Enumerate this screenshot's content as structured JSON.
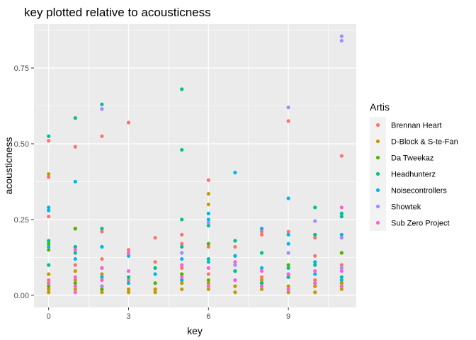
{
  "chart_data": {
    "type": "scatter",
    "title": "key plotted relative to acousticness",
    "xlabel": "key",
    "ylabel": "acousticness",
    "xlim": [
      -0.55,
      11.55
    ],
    "ylim": [
      -0.04,
      0.895
    ],
    "x_ticks": [
      0,
      3,
      6,
      9
    ],
    "y_ticks": [
      0.0,
      0.25,
      0.5,
      0.75
    ],
    "x_tick_labels": [
      "0",
      "3",
      "6",
      "9"
    ],
    "y_tick_labels": [
      "0.00",
      "0.25",
      "0.50",
      "0.75"
    ],
    "grid": true,
    "legend": {
      "title": "Artis",
      "position": "right"
    },
    "series": [
      {
        "name": "Brennan Heart",
        "color": "#F8766D",
        "points": [
          [
            0,
            0.51
          ],
          [
            0,
            0.39
          ],
          [
            0,
            0.26
          ],
          [
            0,
            0.05
          ],
          [
            1,
            0.49
          ],
          [
            1,
            0.22
          ],
          [
            1,
            0.1
          ],
          [
            2,
            0.525
          ],
          [
            2,
            0.21
          ],
          [
            2,
            0.12
          ],
          [
            3,
            0.57
          ],
          [
            3,
            0.15
          ],
          [
            3,
            0.05
          ],
          [
            4,
            0.19
          ],
          [
            4,
            0.11
          ],
          [
            4,
            0.02
          ],
          [
            5,
            0.2
          ],
          [
            5,
            0.17
          ],
          [
            5,
            0.09
          ],
          [
            6,
            0.38
          ],
          [
            6,
            0.16
          ],
          [
            6,
            0.07
          ],
          [
            7,
            0.16
          ],
          [
            7,
            0.13
          ],
          [
            7,
            0.05
          ],
          [
            8,
            0.21
          ],
          [
            8,
            0.2
          ],
          [
            8,
            0.06
          ],
          [
            9,
            0.575
          ],
          [
            9,
            0.21
          ],
          [
            9,
            0.07
          ],
          [
            10,
            0.19
          ],
          [
            10,
            0.13
          ],
          [
            10,
            0.05
          ],
          [
            11,
            0.46
          ],
          [
            11,
            0.1
          ],
          [
            11,
            0.04
          ]
        ]
      },
      {
        "name": "D-Block & S-te-Fan",
        "color": "#C49A00",
        "points": [
          [
            0,
            0.4
          ],
          [
            0,
            0.07
          ],
          [
            0,
            0.04
          ],
          [
            0,
            0.02
          ],
          [
            0,
            0.01
          ],
          [
            1,
            0.22
          ],
          [
            1,
            0.08
          ],
          [
            1,
            0.05
          ],
          [
            1,
            0.02
          ],
          [
            2,
            0.07
          ],
          [
            2,
            0.03
          ],
          [
            2,
            0.01
          ],
          [
            3,
            0.02
          ],
          [
            3,
            0.01
          ],
          [
            4,
            0.02
          ],
          [
            4,
            0.01
          ],
          [
            5,
            0.07
          ],
          [
            5,
            0.04
          ],
          [
            5,
            0.02
          ],
          [
            6,
            0.335
          ],
          [
            6,
            0.3
          ],
          [
            6,
            0.04
          ],
          [
            6,
            0.02
          ],
          [
            7,
            0.03
          ],
          [
            7,
            0.01
          ],
          [
            8,
            0.05
          ],
          [
            8,
            0.02
          ],
          [
            9,
            0.06
          ],
          [
            9,
            0.03
          ],
          [
            9,
            0.01
          ],
          [
            10,
            0.03
          ],
          [
            10,
            0.01
          ],
          [
            11,
            0.04
          ],
          [
            11,
            0.02
          ]
        ]
      },
      {
        "name": "Da Tweekaz",
        "color": "#53B400",
        "points": [
          [
            0,
            0.17
          ],
          [
            0,
            0.15
          ],
          [
            0,
            0.03
          ],
          [
            1,
            0.22
          ],
          [
            1,
            0.16
          ],
          [
            1,
            0.04
          ],
          [
            2,
            0.09
          ],
          [
            2,
            0.02
          ],
          [
            4,
            0.04
          ],
          [
            5,
            0.07
          ],
          [
            5,
            0.05
          ],
          [
            6,
            0.17
          ],
          [
            6,
            0.05
          ],
          [
            7,
            0.08
          ],
          [
            8,
            0.04
          ],
          [
            9,
            0.1
          ],
          [
            10,
            0.04
          ],
          [
            11,
            0.14
          ],
          [
            11,
            0.03
          ]
        ]
      },
      {
        "name": "Headhunterz",
        "color": "#00C094",
        "points": [
          [
            0,
            0.525
          ],
          [
            0,
            0.18
          ],
          [
            0,
            0.1
          ],
          [
            1,
            0.585
          ],
          [
            1,
            0.16
          ],
          [
            1,
            0.14
          ],
          [
            2,
            0.63
          ],
          [
            2,
            0.22
          ],
          [
            2,
            0.16
          ],
          [
            3,
            0.06
          ],
          [
            4,
            0.09
          ],
          [
            5,
            0.68
          ],
          [
            5,
            0.48
          ],
          [
            5,
            0.25
          ],
          [
            5,
            0.16
          ],
          [
            6,
            0.23
          ],
          [
            6,
            0.12
          ],
          [
            7,
            0.18
          ],
          [
            7,
            0.08
          ],
          [
            8,
            0.14
          ],
          [
            8,
            0.04
          ],
          [
            9,
            0.09
          ],
          [
            9,
            0.06
          ],
          [
            10,
            0.29
          ],
          [
            10,
            0.2
          ],
          [
            10,
            0.1
          ],
          [
            11,
            0.27
          ],
          [
            11,
            0.26
          ],
          [
            11,
            0.06
          ]
        ]
      },
      {
        "name": "Noisecontrollers",
        "color": "#00B6EB",
        "points": [
          [
            0,
            0.29
          ],
          [
            0,
            0.28
          ],
          [
            0,
            0.16
          ],
          [
            1,
            0.375
          ],
          [
            1,
            0.12
          ],
          [
            2,
            0.16
          ],
          [
            2,
            0.06
          ],
          [
            3,
            0.13
          ],
          [
            3,
            0.04
          ],
          [
            4,
            0.07
          ],
          [
            5,
            0.12
          ],
          [
            5,
            0.05
          ],
          [
            6,
            0.27
          ],
          [
            6,
            0.25
          ],
          [
            6,
            0.11
          ],
          [
            7,
            0.405
          ],
          [
            7,
            0.13
          ],
          [
            8,
            0.22
          ],
          [
            8,
            0.09
          ],
          [
            9,
            0.32
          ],
          [
            9,
            0.2
          ],
          [
            9,
            0.17
          ],
          [
            10,
            0.11
          ],
          [
            10,
            0.07
          ],
          [
            11,
            0.2
          ],
          [
            11,
            0.05
          ]
        ]
      },
      {
        "name": "Showtek",
        "color": "#A58AFF",
        "points": [
          [
            2,
            0.615
          ],
          [
            2,
            0.03
          ],
          [
            5,
            0.14
          ],
          [
            6,
            0.24
          ],
          [
            7,
            0.1
          ],
          [
            9,
            0.62
          ],
          [
            9,
            0.14
          ],
          [
            10,
            0.245
          ],
          [
            11,
            0.855
          ],
          [
            11,
            0.84
          ],
          [
            11,
            0.19
          ],
          [
            11,
            0.09
          ]
        ]
      },
      {
        "name": "Sub Zero Project",
        "color": "#FB61D7",
        "points": [
          [
            0,
            0.04
          ],
          [
            1,
            0.15
          ],
          [
            1,
            0.06
          ],
          [
            1,
            0.03
          ],
          [
            1,
            0.01
          ],
          [
            2,
            0.09
          ],
          [
            2,
            0.05
          ],
          [
            3,
            0.14
          ],
          [
            3,
            0.08
          ],
          [
            5,
            0.1
          ],
          [
            5,
            0.06
          ],
          [
            6,
            0.09
          ],
          [
            6,
            0.03
          ],
          [
            7,
            0.11
          ],
          [
            7,
            0.05
          ],
          [
            8,
            0.08
          ],
          [
            8,
            0.03
          ],
          [
            9,
            0.07
          ],
          [
            9,
            0.02
          ],
          [
            10,
            0.08
          ],
          [
            10,
            0.04
          ],
          [
            11,
            0.29
          ],
          [
            11,
            0.08
          ],
          [
            11,
            0.03
          ]
        ]
      }
    ]
  }
}
